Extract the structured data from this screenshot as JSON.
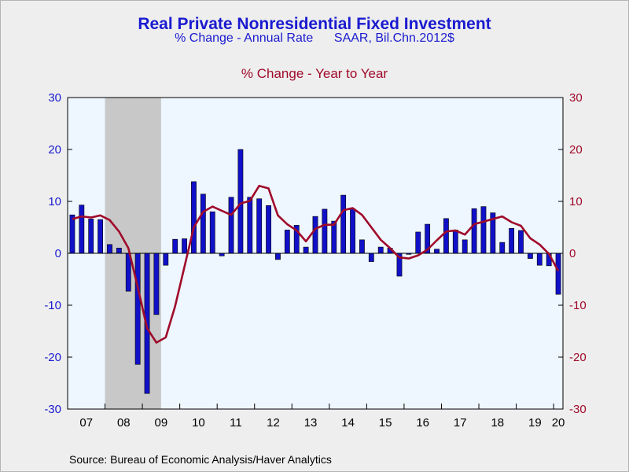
{
  "title": "Real Private Nonresidential Fixed Investment",
  "subtitle_left": "% Change - Annual Rate",
  "subtitle_right": "SAAR, Bil.Chn.2012$",
  "line_label": "% Change - Year to Year",
  "source": "Source:  Bureau of Economic Analysis/Haver Analytics",
  "colors": {
    "bars": "#1010c8",
    "line": "#a00a2a",
    "plot_bg": "#eef6ff",
    "recession": "#c8c8c8",
    "left_axis": "#1a1ad0",
    "right_axis": "#a00a2a"
  },
  "chart_data": {
    "type": "bar",
    "x_start": "2007Q1",
    "x_end": "2020Q1",
    "x_tick_labels": [
      "07",
      "08",
      "09",
      "10",
      "11",
      "12",
      "13",
      "14",
      "15",
      "16",
      "17",
      "18",
      "19",
      "20"
    ],
    "left_axis": {
      "ylim": [
        -30,
        30
      ],
      "ticks": [
        30,
        20,
        10,
        0,
        -10,
        -20,
        -30
      ]
    },
    "right_axis": {
      "ylim": [
        -30,
        30
      ],
      "ticks": [
        30,
        20,
        10,
        0,
        -10,
        -20,
        -30
      ]
    },
    "recession_shading": {
      "start": "2008Q1",
      "end": "2009Q2"
    },
    "series": [
      {
        "kind": "bar",
        "axis": "left",
        "quarters": [
          "2007Q1",
          "2007Q2",
          "2007Q3",
          "2007Q4",
          "2008Q1",
          "2008Q2",
          "2008Q3",
          "2008Q4",
          "2009Q1",
          "2009Q2",
          "2009Q3",
          "2009Q4",
          "2010Q1",
          "2010Q2",
          "2010Q3",
          "2010Q4",
          "2011Q1",
          "2011Q2",
          "2011Q3",
          "2011Q4",
          "2012Q1",
          "2012Q2",
          "2012Q3",
          "2012Q4",
          "2013Q1",
          "2013Q2",
          "2013Q3",
          "2013Q4",
          "2014Q1",
          "2014Q2",
          "2014Q3",
          "2014Q4",
          "2015Q1",
          "2015Q2",
          "2015Q3",
          "2015Q4",
          "2016Q1",
          "2016Q2",
          "2016Q3",
          "2016Q4",
          "2017Q1",
          "2017Q2",
          "2017Q3",
          "2017Q4",
          "2018Q1",
          "2018Q2",
          "2018Q3",
          "2018Q4",
          "2019Q1",
          "2019Q2",
          "2019Q3",
          "2019Q4",
          "2020Q1"
        ],
        "values": [
          7.4,
          9.3,
          6.6,
          6.5,
          1.7,
          1.0,
          -7.3,
          -21.4,
          -27.0,
          -11.8,
          -2.3,
          2.7,
          2.8,
          13.8,
          11.4,
          8.0,
          -0.5,
          10.8,
          20.0,
          10.8,
          10.5,
          9.2,
          -1.2,
          4.5,
          5.4,
          1.2,
          7.1,
          8.5,
          6.2,
          11.2,
          8.6,
          2.6,
          -1.6,
          1.2,
          1.0,
          -4.4,
          -0.2,
          4.1,
          5.6,
          0.8,
          6.7,
          4.5,
          2.6,
          8.6,
          9.0,
          7.8,
          2.1,
          4.8,
          4.4,
          -1.0,
          -2.3,
          -2.4,
          -7.9
        ]
      },
      {
        "kind": "line",
        "axis": "right",
        "quarters": [
          "2007Q1",
          "2007Q2",
          "2007Q3",
          "2007Q4",
          "2008Q1",
          "2008Q2",
          "2008Q3",
          "2008Q4",
          "2009Q1",
          "2009Q2",
          "2009Q3",
          "2009Q4",
          "2010Q1",
          "2010Q2",
          "2010Q3",
          "2010Q4",
          "2011Q1",
          "2011Q2",
          "2011Q3",
          "2011Q4",
          "2012Q1",
          "2012Q2",
          "2012Q3",
          "2012Q4",
          "2013Q1",
          "2013Q2",
          "2013Q3",
          "2013Q4",
          "2014Q1",
          "2014Q2",
          "2014Q3",
          "2014Q4",
          "2015Q1",
          "2015Q2",
          "2015Q3",
          "2015Q4",
          "2016Q1",
          "2016Q2",
          "2016Q3",
          "2016Q4",
          "2017Q1",
          "2017Q2",
          "2017Q3",
          "2017Q4",
          "2018Q1",
          "2018Q2",
          "2018Q3",
          "2018Q4",
          "2019Q1",
          "2019Q2",
          "2019Q3",
          "2019Q4",
          "2020Q1"
        ],
        "values": [
          6.6,
          7.1,
          6.9,
          7.3,
          6.4,
          4.2,
          1.0,
          -6.5,
          -14.4,
          -17.2,
          -16.2,
          -10.2,
          -2.6,
          5.0,
          8.0,
          9.0,
          8.2,
          7.4,
          9.6,
          10.1,
          13.0,
          12.5,
          7.3,
          5.6,
          4.4,
          2.3,
          4.7,
          5.5,
          5.5,
          8.3,
          8.7,
          7.4,
          5.0,
          2.6,
          1.0,
          -0.8,
          -1.0,
          -0.4,
          0.7,
          2.5,
          4.2,
          4.4,
          3.6,
          5.6,
          6.1,
          6.6,
          7.1,
          6.0,
          5.3,
          2.9,
          1.7,
          -0.1,
          -3.4
        ]
      }
    ]
  }
}
